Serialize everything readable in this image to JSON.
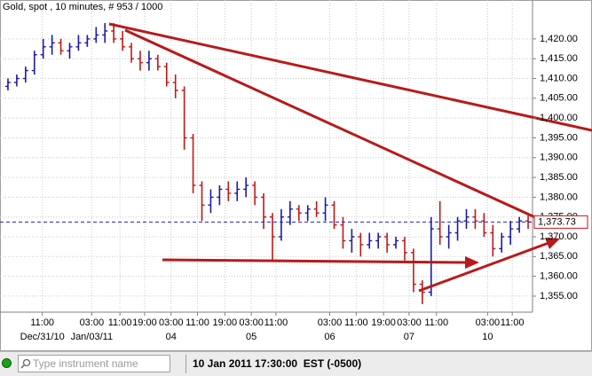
{
  "chart_data": {
    "type": "ohlc",
    "title": "Gold, spot , 10 minutes, # 953 / 1000",
    "open": [
      1408,
      1409,
      1410,
      1412,
      1416,
      1418,
      1419,
      1417,
      1418,
      1419,
      1420,
      1421,
      1422,
      1420,
      1418,
      1415,
      1414,
      1415,
      1413,
      1409,
      1407,
      1395,
      1383,
      1378,
      1380,
      1382,
      1381,
      1382,
      1383,
      1380,
      1375,
      1370,
      1375,
      1377,
      1376,
      1377,
      1376,
      1378,
      1373,
      1369,
      1370,
      1368,
      1369,
      1370,
      1368,
      1369,
      1366,
      1358,
      1356,
      1372,
      1370,
      1371,
      1374,
      1375,
      1374,
      1371,
      1367,
      1370,
      1372,
      1374
    ],
    "high": [
      1410,
      1411,
      1413,
      1417,
      1420,
      1421,
      1420,
      1419,
      1421,
      1421,
      1423,
      1424,
      1424,
      1422,
      1419,
      1417,
      1417,
      1416,
      1414,
      1411,
      1408,
      1396,
      1384,
      1382,
      1383,
      1384,
      1384,
      1385,
      1384,
      1381,
      1376,
      1377,
      1379,
      1378,
      1378,
      1379,
      1380,
      1379,
      1375,
      1372,
      1371,
      1371,
      1371,
      1371,
      1370,
      1370,
      1367,
      1359,
      1375,
      1379,
      1373,
      1375,
      1377,
      1377,
      1376,
      1373,
      1371,
      1374,
      1375,
      1376
    ],
    "low": [
      1407,
      1408,
      1409,
      1411,
      1415,
      1416,
      1416,
      1415,
      1417,
      1418,
      1419,
      1419,
      1419,
      1417,
      1414,
      1412,
      1412,
      1412,
      1408,
      1405,
      1392,
      1381,
      1374,
      1376,
      1378,
      1379,
      1379,
      1380,
      1378,
      1372,
      1364,
      1369,
      1373,
      1374,
      1374,
      1375,
      1374,
      1372,
      1367,
      1366,
      1365,
      1367,
      1367,
      1366,
      1367,
      1364,
      1356,
      1353,
      1355,
      1368,
      1367,
      1369,
      1372,
      1372,
      1370,
      1365,
      1366,
      1368,
      1371,
      1372
    ],
    "close": [
      1409,
      1410,
      1412,
      1416,
      1418,
      1419,
      1417,
      1418,
      1419,
      1420,
      1421,
      1422,
      1420,
      1418,
      1415,
      1414,
      1415,
      1413,
      1409,
      1407,
      1395,
      1383,
      1378,
      1380,
      1382,
      1381,
      1382,
      1383,
      1380,
      1375,
      1370,
      1375,
      1377,
      1376,
      1377,
      1376,
      1378,
      1373,
      1369,
      1370,
      1368,
      1369,
      1370,
      1368,
      1369,
      1366,
      1358,
      1356,
      1372,
      1370,
      1371,
      1374,
      1375,
      1374,
      1371,
      1367,
      1370,
      1372,
      1374,
      1373.73
    ],
    "up_color": "#1a1aa8",
    "down_color": "#c01818",
    "xlim": [
      0,
      60
    ],
    "xticks": [
      {
        "value": 4.4,
        "label": "11:00"
      },
      {
        "value": 10,
        "label": "03:00"
      },
      {
        "value": 13.2,
        "label": "11:00"
      },
      {
        "value": 16,
        "label": "19:00"
      },
      {
        "value": 19,
        "label": "03:00"
      },
      {
        "value": 22,
        "label": "11:00"
      },
      {
        "value": 25.1,
        "label": "19:00"
      },
      {
        "value": 28.1,
        "label": "03:00"
      },
      {
        "value": 30.9,
        "label": "11:00"
      },
      {
        "value": 37,
        "label": "03:00"
      },
      {
        "value": 40,
        "label": "11:00"
      },
      {
        "value": 43.1,
        "label": "19:00"
      },
      {
        "value": 46,
        "label": "03:00"
      },
      {
        "value": 49.1,
        "label": "11:00"
      },
      {
        "value": 54.9,
        "label": "03:00"
      },
      {
        "value": 57.7,
        "label": "11:00"
      }
    ],
    "date_ticks": [
      {
        "value": 4.4,
        "label": "Dec/31/10"
      },
      {
        "value": 10,
        "label": "Jan/03/11"
      },
      {
        "value": 19,
        "label": "04"
      },
      {
        "value": 28.1,
        "label": "05"
      },
      {
        "value": 37,
        "label": "06"
      },
      {
        "value": 46,
        "label": "07"
      },
      {
        "value": 54.9,
        "label": "10"
      }
    ],
    "ylim": [
      1351.4,
      1425.8
    ],
    "yticks": [
      {
        "value": 1355,
        "label": "1,355.00"
      },
      {
        "value": 1360,
        "label": "1,360.00"
      },
      {
        "value": 1365,
        "label": "1,365.00"
      },
      {
        "value": 1370,
        "label": "1,370.00"
      },
      {
        "value": 1375,
        "label": "1,375.00"
      },
      {
        "value": 1380,
        "label": "1,380.00"
      },
      {
        "value": 1385,
        "label": "1,385.00"
      },
      {
        "value": 1390,
        "label": "1,390.00"
      },
      {
        "value": 1395,
        "label": "1,395.00"
      },
      {
        "value": 1400,
        "label": "1,400.00"
      },
      {
        "value": 1405,
        "label": "1,405.00"
      },
      {
        "value": 1410,
        "label": "1,410.00"
      },
      {
        "value": 1415,
        "label": "1,415.00"
      },
      {
        "value": 1420,
        "label": "1,420.00"
      }
    ],
    "grid": true,
    "last_price": {
      "value": 1373.73,
      "label": "1,373.73"
    },
    "last_price_color": "#d01010"
  },
  "status_bar": {
    "search_placeholder": "Type instrument name",
    "time": "10 Jan 2011 17:30:00  EST (-0500)"
  }
}
